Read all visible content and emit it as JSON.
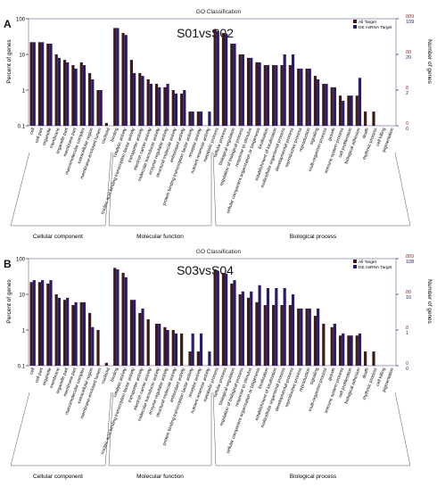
{
  "categories": [
    "cell",
    "cell part",
    "organelle",
    "membrane",
    "organelle part",
    "membrane part",
    "macromolecular complex",
    "extracellular region",
    "membrane-enclosed lumen",
    "nucleoid",
    "binding",
    "catalytic activity",
    "nucleic acid binding transcription factor activity",
    "transporter activity",
    "electron carrier activity",
    "molecular transducer activity",
    "enzyme regulator activity",
    "structural molecule activity",
    "antioxidant activity",
    "protein binding transcription factor activity",
    "receptor activity",
    "nutrient reservoir activity",
    "metabolic process",
    "cellular process",
    "biological regulation",
    "regulation of biological process",
    "response to stimulus",
    "cellular component organization or biogenesis",
    "localization",
    "establishment of localization",
    "multicellular organismal process",
    "developmental process",
    "reproductive process",
    "reproduction",
    "signaling",
    "multi-organism process",
    "growth",
    "immune system process",
    "cell proliferation",
    "biological adhesion",
    "death",
    "rhythmic process",
    "cell killing",
    "pigmentation"
  ],
  "groups": [
    {
      "label": "Cellular component",
      "start": 0,
      "end": 9
    },
    {
      "label": "Molecular function",
      "start": 10,
      "end": 21
    },
    {
      "label": "Biological process",
      "start": 22,
      "end": 43
    }
  ],
  "colors": {
    "all_target": "#3d1a1a",
    "de_target": "#2a1a6b",
    "frame": "#4a4a6a",
    "tick": "#000000",
    "right_axis_top": "#8b3a3a",
    "right_axis_bottom": "#2a1a6b"
  },
  "chart_data": [
    {
      "type": "bar",
      "panel_letter": "A",
      "title": "GO Classification",
      "annotation": "S01vsS02",
      "ylabel": "Percent of genes",
      "ylabel_right": "Number of genes",
      "y_scale": "log",
      "ylim": [
        0.1,
        100
      ],
      "y_ticks": [
        "100",
        "10",
        "1",
        "0.1"
      ],
      "right_ticks": [
        {
          "top": "889",
          "bottom": "109",
          "value": 100
        },
        {
          "top": "88",
          "bottom": "20",
          "value": 10
        },
        {
          "top": "8",
          "bottom": "2",
          "value": 1
        },
        {
          "top": "0",
          "bottom": "0",
          "value": 0.1
        }
      ],
      "legend_position": "top-right",
      "series": [
        {
          "name": "All Target",
          "values": [
            22,
            22,
            20,
            10,
            7,
            5,
            6,
            3,
            1,
            0.12,
            55,
            40,
            7,
            3,
            2,
            1.5,
            1.2,
            1,
            0.8,
            0.25,
            0.25,
            0,
            50,
            40,
            20,
            10,
            8,
            6,
            5,
            5,
            5,
            5,
            4,
            4,
            2.5,
            1.5,
            1.2,
            0.7,
            0.7,
            0.7,
            0.25,
            0.25,
            0.1,
            0.1
          ]
        },
        {
          "name": "DE miRNA Target",
          "values": [
            22,
            22,
            20,
            8,
            6,
            4,
            5,
            2,
            1,
            0,
            55,
            35,
            3,
            2.5,
            1.5,
            1.2,
            1.5,
            0.8,
            1,
            0.25,
            0.25,
            0.25,
            45,
            38,
            20,
            10,
            8,
            6,
            5,
            5,
            10,
            10,
            4,
            4,
            2,
            1.5,
            1.2,
            0.5,
            0.7,
            2.2,
            0,
            0,
            0,
            0
          ]
        }
      ]
    },
    {
      "type": "bar",
      "panel_letter": "B",
      "title": "GO Classification",
      "annotation": "S03vsS04",
      "ylabel": "Percent of genes",
      "ylabel_right": "Number of genes",
      "y_scale": "log",
      "ylim": [
        0.1,
        100
      ],
      "y_ticks": [
        "100",
        "10",
        "1",
        "0.1"
      ],
      "right_ticks": [
        {
          "top": "889",
          "bottom": "108",
          "value": 100
        },
        {
          "top": "88",
          "bottom": "10",
          "value": 10
        },
        {
          "top": "8",
          "bottom": "1",
          "value": 1
        },
        {
          "top": "0",
          "bottom": "0",
          "value": 0.1
        }
      ],
      "legend_position": "top-right",
      "series": [
        {
          "name": "All Target",
          "values": [
            22,
            22,
            20,
            10,
            7,
            5,
            6,
            3,
            1,
            0.12,
            55,
            40,
            7,
            3,
            2,
            1.5,
            1.2,
            1,
            0.8,
            0.25,
            0.25,
            0,
            50,
            40,
            20,
            10,
            8,
            6,
            5,
            5,
            5,
            5,
            4,
            4,
            2.5,
            1.5,
            1.2,
            0.7,
            0.7,
            0.7,
            0.25,
            0.25,
            0.1,
            0.1
          ]
        },
        {
          "name": "DE miRNA Target",
          "values": [
            25,
            25,
            25,
            8,
            8,
            6,
            6,
            1.2,
            0,
            0,
            50,
            30,
            7,
            4,
            0,
            1.5,
            1,
            0.8,
            0,
            0.8,
            0.8,
            0.25,
            45,
            38,
            25,
            12,
            12,
            18,
            15,
            15,
            15,
            10,
            4,
            4,
            4,
            0,
            1.5,
            0.8,
            0.7,
            0.8,
            0,
            0,
            0,
            0
          ]
        }
      ]
    }
  ]
}
